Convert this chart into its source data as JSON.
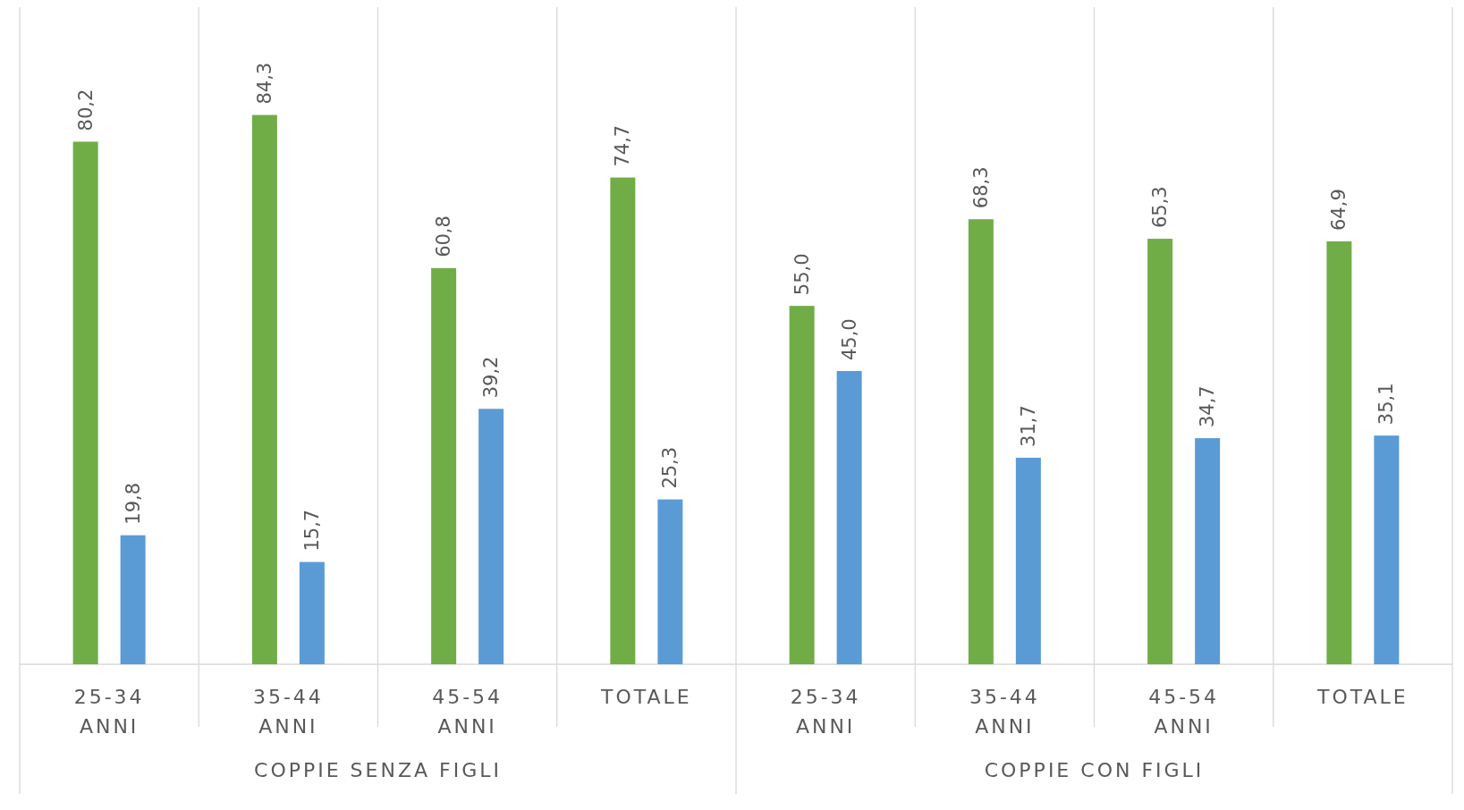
{
  "chart_data": {
    "type": "bar",
    "categories": [
      "25-34 ANNI",
      "35-44 ANNI",
      "45-54 ANNI",
      "TOTALE",
      "25-34 ANNI",
      "35-44 ANNI",
      "45-54 ANNI",
      "TOTALE"
    ],
    "series": [
      {
        "color": "#70ad47",
        "values": [
          80.2,
          84.3,
          60.8,
          74.7,
          55.0,
          68.3,
          65.3,
          64.9
        ],
        "value_labels": [
          "80,2",
          "84,3",
          "60,8",
          "74,7",
          "55,0",
          "68,3",
          "65,3",
          "64,9"
        ]
      },
      {
        "color": "#5b9bd5",
        "values": [
          19.8,
          15.7,
          39.2,
          25.3,
          45.0,
          31.7,
          34.7,
          35.1
        ],
        "value_labels": [
          "19,8",
          "15,7",
          "39,2",
          "25,3",
          "45,0",
          "31,7",
          "34,7",
          "35,1"
        ]
      }
    ],
    "annotations": [
      "COPPIE SENZA FIGLI",
      "COPPIE CON FIGLI"
    ],
    "grid": "x"
  }
}
